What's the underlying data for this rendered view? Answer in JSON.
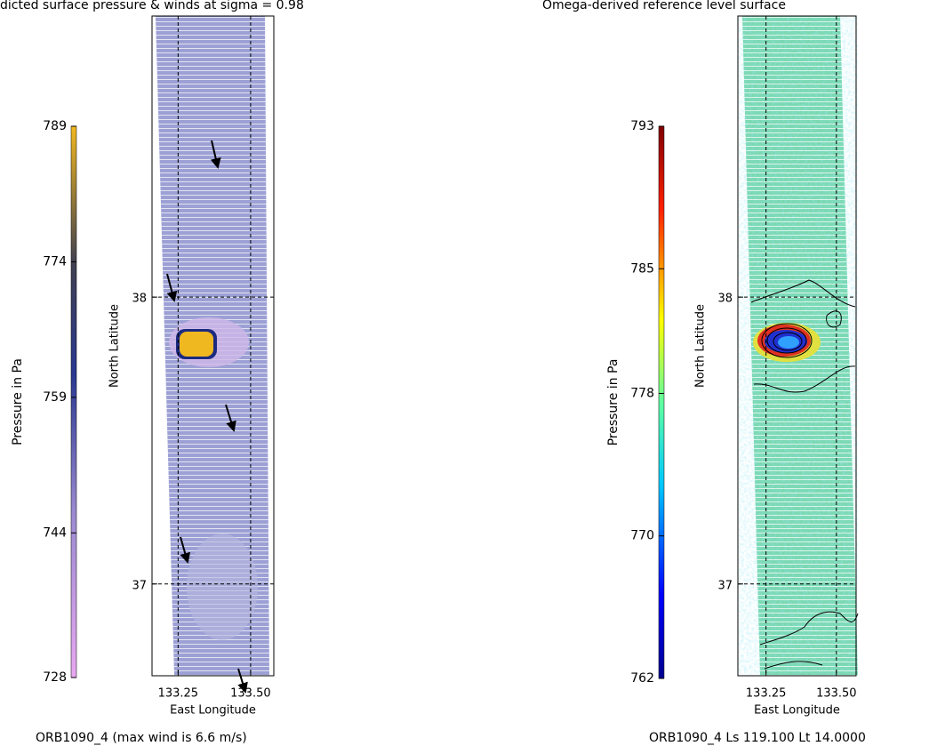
{
  "chart_data": [
    {
      "type": "map",
      "title": "dicted surface pressure & winds at sigma =   0.98",
      "xlabel": "East Longitude",
      "ylabel": "North Latitude",
      "colorbar_label": "Pressure in Pa",
      "footer": "ORB1090_4  (max wind is  6.6 m/s)",
      "xlim": [
        133.16,
        133.58
      ],
      "xticks": [
        133.25,
        {
          "value": 133.5,
          "label": "133.50"
        }
      ],
      "ylim": [
        36.68,
        38.98
      ],
      "yticks": [
        37,
        38
      ],
      "clim": [
        728,
        789
      ],
      "cticks": [
        728,
        744,
        759,
        774,
        789
      ],
      "grid": true
    },
    {
      "type": "map",
      "title": "Omega-derived reference level surface",
      "xlabel": "East Longitude",
      "ylabel": "North Latitude",
      "colorbar_label": "Pressure in Pa",
      "footer": "ORB1090_4 Ls 119.100 Lt 14.0000",
      "xlim": [
        133.15,
        133.57
      ],
      "xticks": [
        133.25,
        {
          "value": 133.5,
          "label": "133.50"
        }
      ],
      "ylim": [
        36.68,
        38.98
      ],
      "yticks": [
        37,
        38
      ],
      "clim": [
        762,
        793
      ],
      "cticks": [
        762,
        770,
        778,
        785,
        793
      ],
      "grid": true
    }
  ]
}
